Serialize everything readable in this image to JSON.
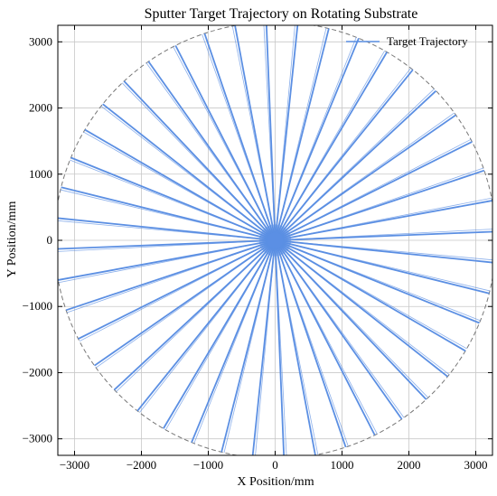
{
  "chart_data": {
    "type": "line",
    "title": "Sputter Target Trajectory on Rotating Substrate",
    "xlabel": "X Position/mm",
    "ylabel": "Y Position/mm",
    "xlim": [
      -3250,
      3250
    ],
    "ylim": [
      -3250,
      3250
    ],
    "x_ticks": [
      -3000,
      -2000,
      -1000,
      0,
      1000,
      2000,
      3000
    ],
    "y_ticks": [
      -3000,
      -2000,
      -1000,
      0,
      1000,
      2000,
      3000
    ],
    "x_tick_labels": [
      "−3000",
      "−2000",
      "−1000",
      "0",
      "1000",
      "2000",
      "3000"
    ],
    "y_tick_labels": [
      "−3000",
      "−2000",
      "−1000",
      "0",
      "1000",
      "2000",
      "3000"
    ],
    "grid": true,
    "legend": {
      "placement": "top-right",
      "entries": [
        "Target Trajectory"
      ]
    },
    "series": [
      {
        "name": "Target Trajectory",
        "color": "#5b8fe3",
        "style": "radial spokes from center to substrate edge",
        "spoke_count": 44,
        "spoke_length": 3300,
        "center_cluster_radius": 120
      }
    ],
    "reference_circle": {
      "radius": 3300,
      "style": "dashed",
      "color": "#777777"
    }
  }
}
